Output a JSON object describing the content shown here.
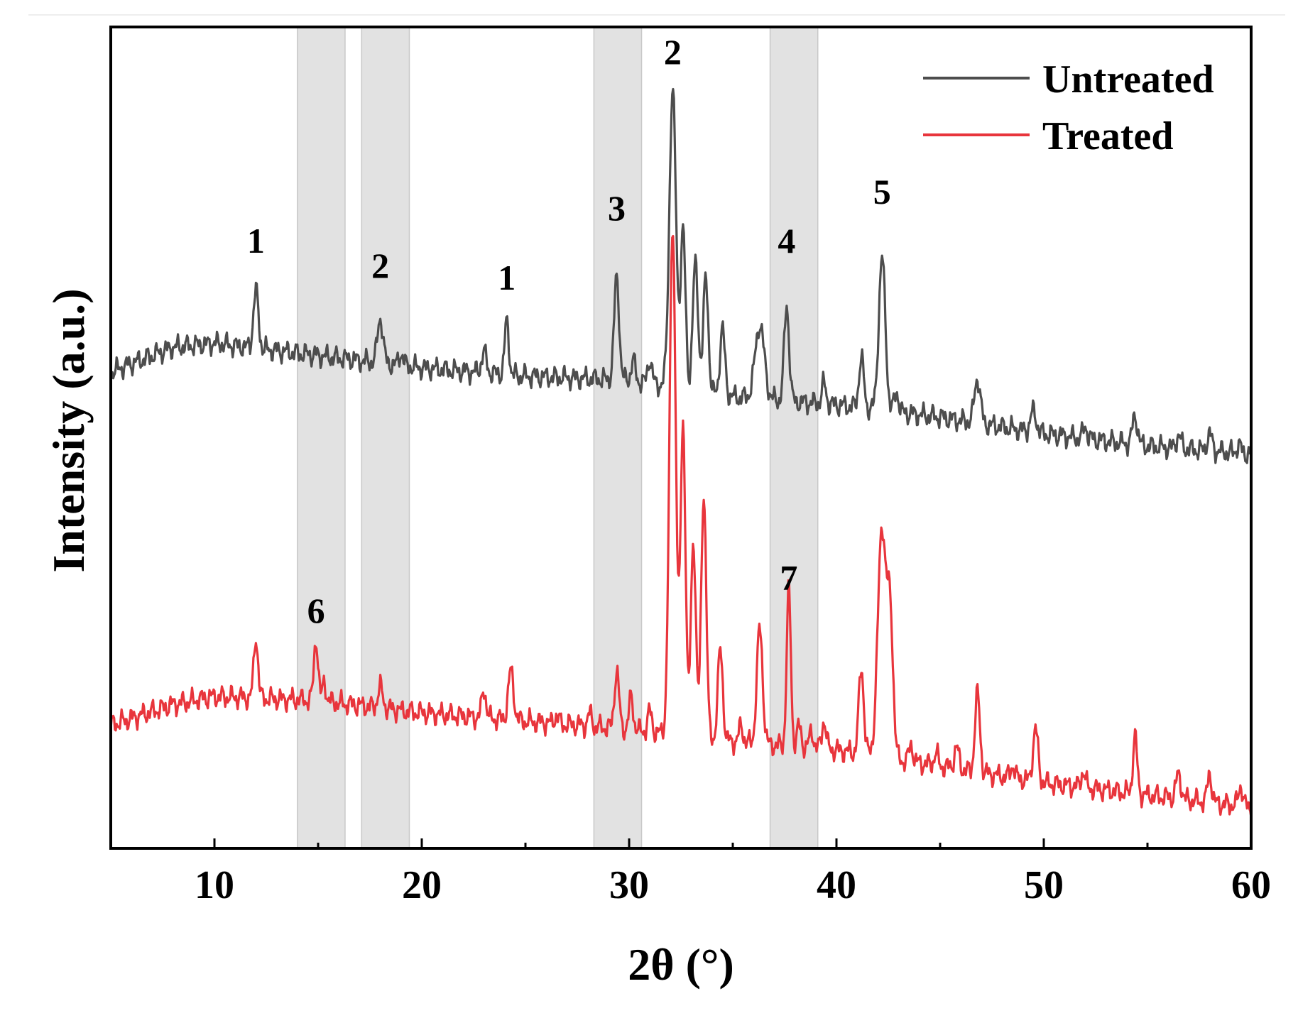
{
  "chart_data": {
    "type": "line",
    "title": "",
    "xlabel": "2θ (°)",
    "ylabel": "Intensity (a.u.)",
    "xlim": [
      5,
      60
    ],
    "ylim": [
      0,
      100
    ],
    "xticks": [
      10,
      20,
      30,
      40,
      50,
      60
    ],
    "xtick_labels": [
      "10",
      "20",
      "30",
      "40",
      "50",
      "60"
    ],
    "y_tick_labels_shown": false,
    "grid": false,
    "legend_position": "top-right",
    "highlight_bands_x": [
      [
        14.0,
        16.3
      ],
      [
        17.1,
        19.4
      ],
      [
        28.3,
        30.6
      ],
      [
        36.8,
        39.1
      ]
    ],
    "highlight_color": "#e2e2e2",
    "series": [
      {
        "name": "Untreated",
        "color": "#4d4d4d",
        "baseline": [
          [
            5,
            58
          ],
          [
            8,
            61
          ],
          [
            10,
            61.5
          ],
          [
            15,
            60
          ],
          [
            20,
            58.5
          ],
          [
            25,
            57.5
          ],
          [
            30,
            57
          ],
          [
            35,
            55
          ],
          [
            40,
            54
          ],
          [
            45,
            52.5
          ],
          [
            50,
            50.5
          ],
          [
            55,
            49
          ],
          [
            60,
            48
          ]
        ],
        "peaks": [
          [
            12.0,
            7,
            0.12
          ],
          [
            18.0,
            5.5,
            0.13
          ],
          [
            19.0,
            1.5,
            0.1
          ],
          [
            23.0,
            2.5,
            0.12
          ],
          [
            24.1,
            6.5,
            0.1
          ],
          [
            29.4,
            12.5,
            0.12
          ],
          [
            30.2,
            2.5,
            0.1
          ],
          [
            31.0,
            3.0,
            0.1
          ],
          [
            32.1,
            36,
            0.16
          ],
          [
            32.6,
            19,
            0.12
          ],
          [
            33.2,
            15.5,
            0.13
          ],
          [
            33.7,
            14,
            0.12
          ],
          [
            34.5,
            8,
            0.12
          ],
          [
            36.3,
            9,
            0.22
          ],
          [
            37.6,
            11.5,
            0.12
          ],
          [
            39.4,
            2.5,
            0.1
          ],
          [
            41.2,
            6.0,
            0.12
          ],
          [
            42.2,
            18.5,
            0.16
          ],
          [
            42.9,
            2.5,
            0.1
          ],
          [
            46.8,
            5.5,
            0.14
          ],
          [
            49.5,
            2.5,
            0.14
          ],
          [
            52.0,
            1.5,
            0.1
          ],
          [
            54.4,
            3.5,
            0.12
          ],
          [
            56.5,
            1.5,
            0.12
          ],
          [
            58.0,
            2.0,
            0.12
          ],
          [
            59.4,
            1.0,
            0.1
          ]
        ]
      },
      {
        "name": "Treated",
        "color": "#e8353c",
        "baseline": [
          [
            5,
            15
          ],
          [
            8,
            17.5
          ],
          [
            10,
            18.5
          ],
          [
            15,
            18
          ],
          [
            20,
            16.5
          ],
          [
            25,
            15.5
          ],
          [
            30,
            14.5
          ],
          [
            35,
            13
          ],
          [
            40,
            12
          ],
          [
            45,
            10
          ],
          [
            50,
            8
          ],
          [
            55,
            6.5
          ],
          [
            60,
            5
          ]
        ],
        "peaks": [
          [
            12.0,
            7.5,
            0.1
          ],
          [
            14.9,
            7.5,
            0.1
          ],
          [
            15.3,
            2.5,
            0.08
          ],
          [
            18.0,
            2.5,
            0.12
          ],
          [
            23.0,
            3.5,
            0.1
          ],
          [
            24.3,
            6.0,
            0.13
          ],
          [
            26.5,
            1.0,
            0.1
          ],
          [
            28.1,
            1.5,
            0.1
          ],
          [
            29.4,
            7.0,
            0.11
          ],
          [
            30.1,
            4.0,
            0.1
          ],
          [
            31.0,
            2.5,
            0.1
          ],
          [
            32.1,
            62,
            0.15
          ],
          [
            32.6,
            38,
            0.12
          ],
          [
            33.1,
            24,
            0.12
          ],
          [
            33.6,
            30,
            0.12
          ],
          [
            34.4,
            11,
            0.12
          ],
          [
            35.4,
            2.0,
            0.1
          ],
          [
            36.3,
            14,
            0.14
          ],
          [
            37.7,
            19,
            0.1
          ],
          [
            38.2,
            2.5,
            0.1
          ],
          [
            38.8,
            2.0,
            0.1
          ],
          [
            39.4,
            3.5,
            0.1
          ],
          [
            41.2,
            10.5,
            0.12
          ],
          [
            42.2,
            28,
            0.2
          ],
          [
            42.6,
            16,
            0.14
          ],
          [
            43.6,
            2.0,
            0.1
          ],
          [
            44.8,
            1.5,
            0.1
          ],
          [
            45.8,
            2.5,
            0.12
          ],
          [
            46.8,
            9.5,
            0.12
          ],
          [
            48.5,
            1.5,
            0.1
          ],
          [
            49.6,
            6.5,
            0.12
          ],
          [
            51.9,
            2.0,
            0.1
          ],
          [
            54.4,
            7.0,
            0.1
          ],
          [
            56.5,
            3.0,
            0.12
          ],
          [
            58.0,
            3.5,
            0.1
          ],
          [
            59.5,
            2.5,
            0.1
          ]
        ]
      }
    ],
    "annotations": [
      {
        "text": "1",
        "x": 12.0,
        "y": 72.5
      },
      {
        "text": "2",
        "x": 18.0,
        "y": 69.5
      },
      {
        "text": "1",
        "x": 24.1,
        "y": 68
      },
      {
        "text": "3",
        "x": 29.4,
        "y": 76.5
      },
      {
        "text": "2",
        "x": 32.1,
        "y": 95.5
      },
      {
        "text": "4",
        "x": 37.6,
        "y": 72.5
      },
      {
        "text": "5",
        "x": 42.2,
        "y": 78.5
      },
      {
        "text": "6",
        "x": 14.9,
        "y": 27.5
      },
      {
        "text": "7",
        "x": 37.7,
        "y": 31.5
      }
    ]
  }
}
